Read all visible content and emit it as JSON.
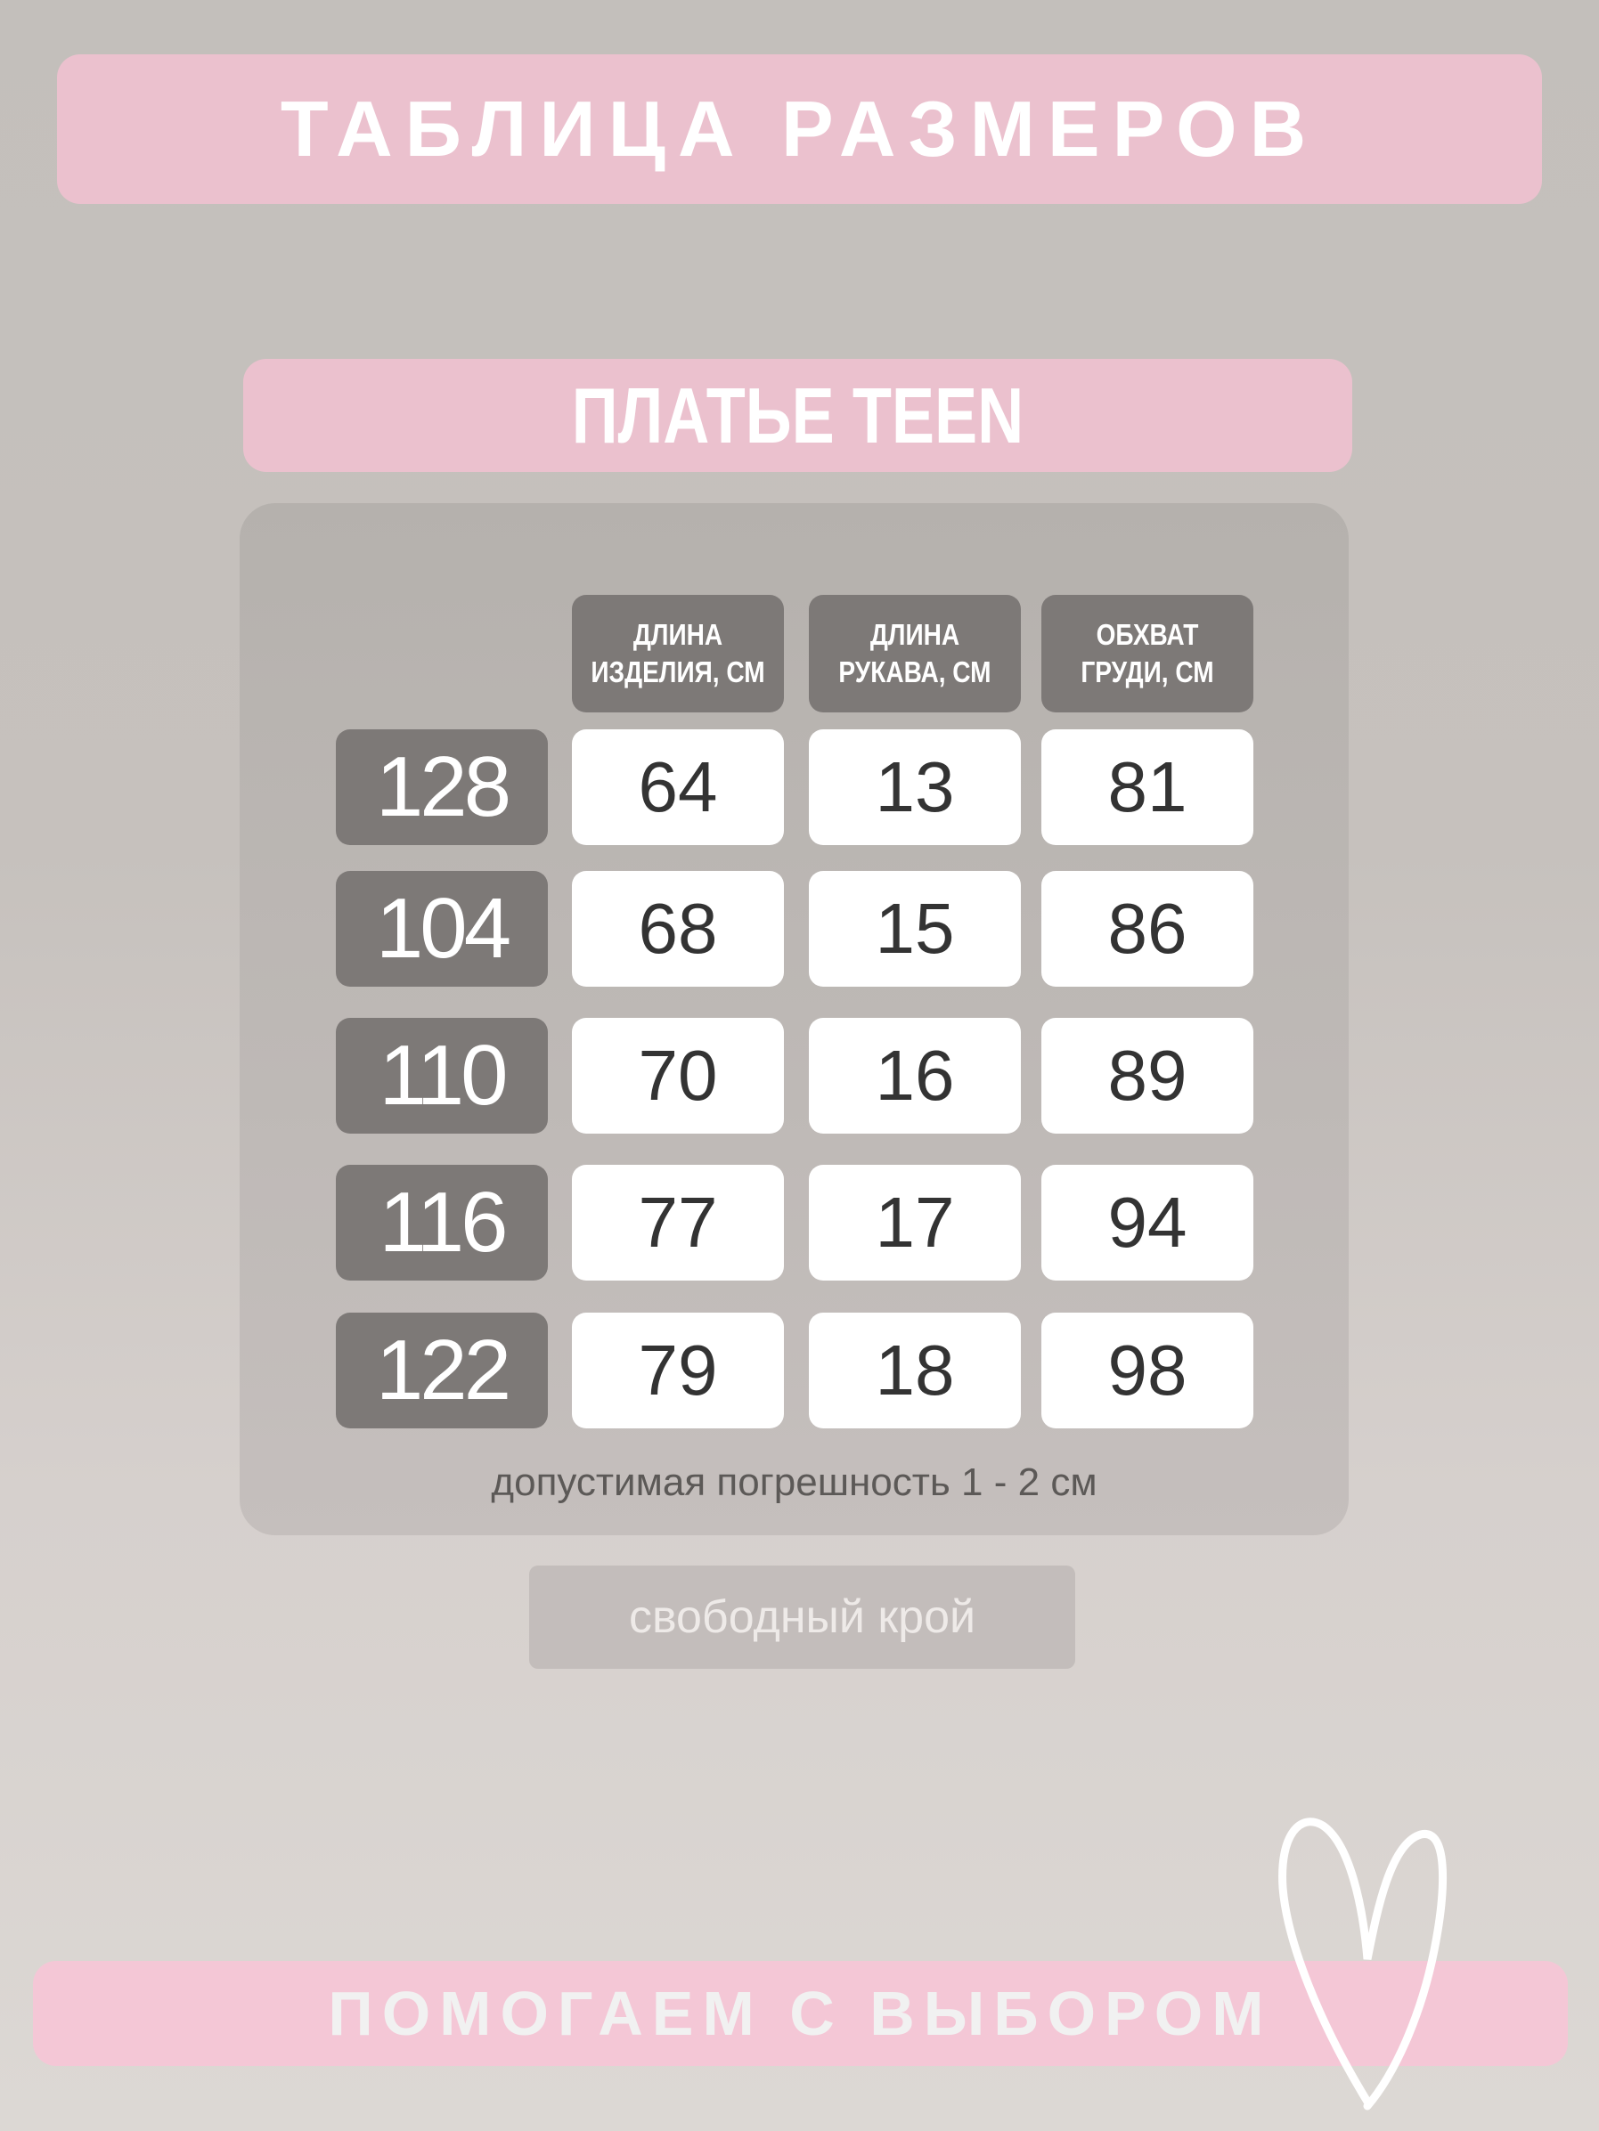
{
  "header": {
    "title": "ТАБЛИЦА РАЗМЕРОВ",
    "subtitle": "ПЛАТЬЕ TEEN"
  },
  "table": {
    "columns": [
      "ДЛИНА ИЗДЕЛИЯ, СМ",
      "ДЛИНА РУКАВА, СМ",
      "ОБХВАТ ГРУДИ, СМ"
    ],
    "rows": [
      {
        "size": "128",
        "values": [
          "64",
          "13",
          "81"
        ]
      },
      {
        "size": "104",
        "values": [
          "68",
          "15",
          "86"
        ]
      },
      {
        "size": "110",
        "values": [
          "70",
          "16",
          "89"
        ]
      },
      {
        "size": "116",
        "values": [
          "77",
          "17",
          "94"
        ]
      },
      {
        "size": "122",
        "values": [
          "79",
          "18",
          "98"
        ]
      }
    ],
    "note": "допустимая погрешность 1 - 2 см"
  },
  "fit": "свободный крой",
  "footer": {
    "text": "ПОМОГАЕМ С ВЫБОРОМ",
    "icon": "heart-outline-icon"
  },
  "colors": {
    "pink": "#ebc1ce",
    "dark_cell": "#7d7977",
    "panel": "#b5b1ad"
  }
}
